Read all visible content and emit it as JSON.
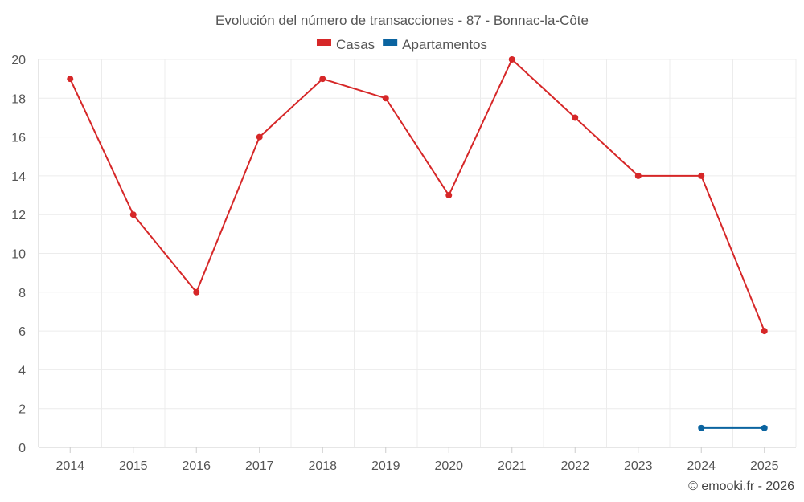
{
  "chart_data": {
    "type": "line",
    "title": "Evolución del número de transacciones - 87 - Bonnac-la-Côte",
    "categories": [
      "2014",
      "2015",
      "2016",
      "2017",
      "2018",
      "2019",
      "2020",
      "2021",
      "2022",
      "2023",
      "2024",
      "2025"
    ],
    "series": [
      {
        "name": "Casas",
        "color": "#d62728",
        "values": [
          19,
          12,
          8,
          16,
          19,
          18,
          13,
          20,
          17,
          14,
          14,
          6
        ]
      },
      {
        "name": "Apartamentos",
        "color": "#0b64a0",
        "values": [
          null,
          null,
          null,
          null,
          null,
          null,
          null,
          null,
          null,
          null,
          1,
          1
        ]
      }
    ],
    "ylim": [
      0,
      20
    ],
    "yticks": [
      0,
      2,
      4,
      6,
      8,
      10,
      12,
      14,
      16,
      18,
      20
    ],
    "grid": true,
    "legend_position": "top-center",
    "xlabel": "",
    "ylabel": ""
  },
  "credit": "© emooki.fr - 2026"
}
